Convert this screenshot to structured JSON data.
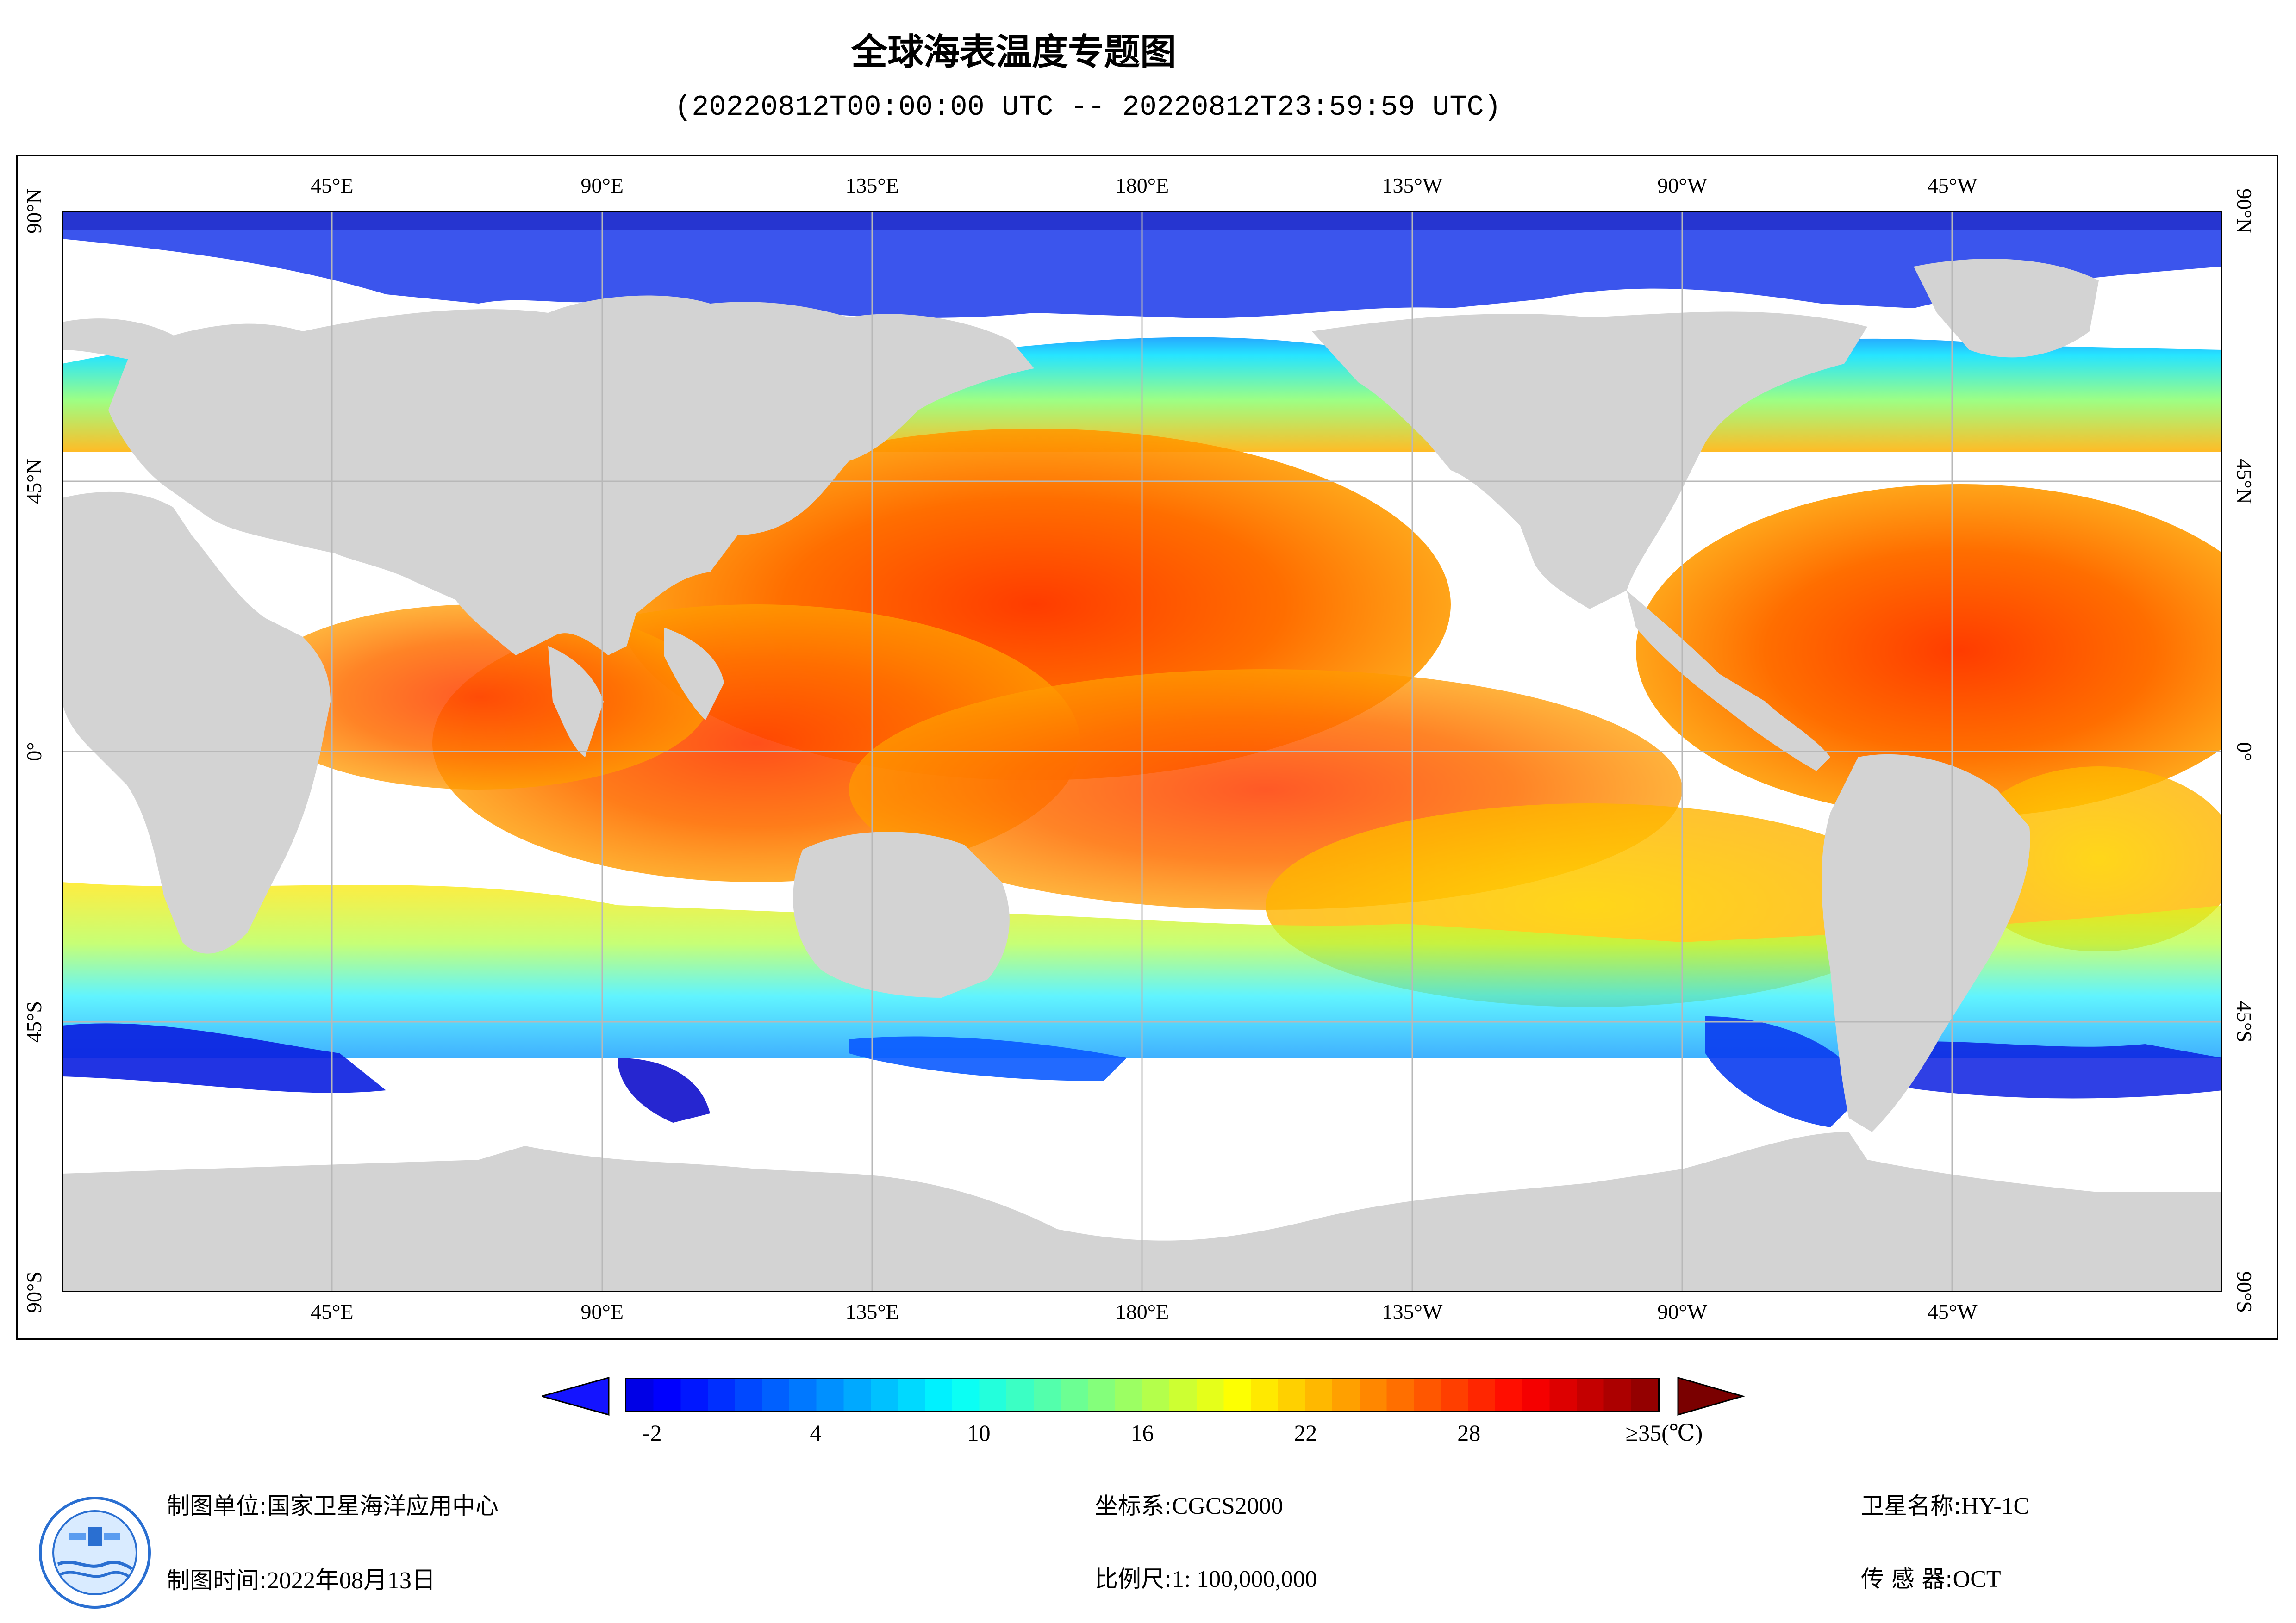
{
  "title": "全球海表温度专题图",
  "subtitle": "(20220812T00:00:00 UTC -- 20220812T23:59:59 UTC)",
  "map": {
    "projection": "equirectangular, centered 180°",
    "lon_labels": [
      "45°E",
      "90°E",
      "135°E",
      "180°E",
      "135°W",
      "90°W",
      "45°W"
    ],
    "lat_labels": [
      "90°N",
      "45°N",
      "0°",
      "45°S",
      "90°S"
    ],
    "colors": {
      "land": "#d3d3d3",
      "no_data": "#ffffff",
      "graticule": "#b8b8b8",
      "polar_ice": "#0012c8"
    }
  },
  "colorbar": {
    "tick_labels": [
      "-2",
      "4",
      "10",
      "16",
      "22",
      "28",
      "≥35(℃)"
    ],
    "tick_values": [
      -2,
      4,
      10,
      16,
      22,
      28,
      35
    ],
    "range": [
      -3,
      35
    ],
    "low_arrow_color": "#1414ff",
    "high_arrow_color": "#7a0000",
    "colormap": "jet"
  },
  "footer": {
    "unit_label": "制图单位:",
    "unit_value": "国家卫星海洋应用中心",
    "time_label": "制图时间:",
    "time_value": "2022年08月13日",
    "crs_label": "坐标系:",
    "crs_value": "CGCS2000",
    "scale_label": "比例尺:",
    "scale_value": "1: 100,000,000",
    "satellite_label": "卫星名称:",
    "satellite_value": "HY-1C",
    "sensor_label": "传 感 器:",
    "sensor_value": "OCT"
  }
}
